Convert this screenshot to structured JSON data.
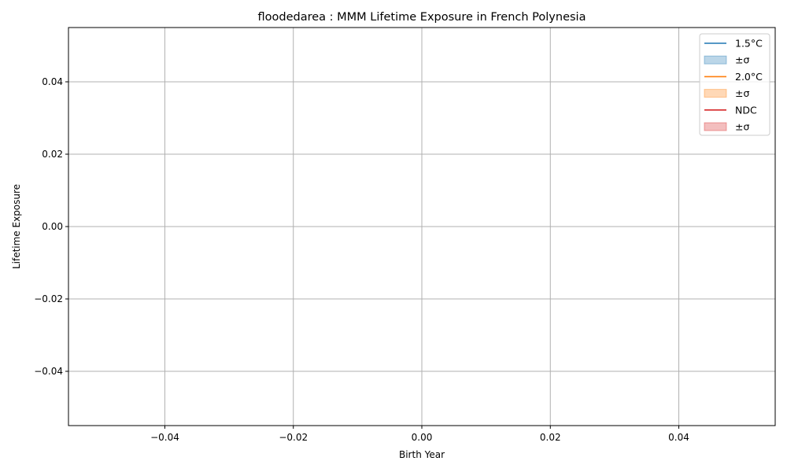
{
  "chart_data": {
    "type": "line",
    "title": "floodedarea : MMM Lifetime Exposure in French Polynesia",
    "xlabel": "Birth Year",
    "ylabel": "Lifetime Exposure",
    "xlim": [
      -0.055,
      0.055
    ],
    "ylim": [
      -0.055,
      0.055
    ],
    "xticks": [
      -0.04,
      -0.02,
      0.0,
      0.02,
      0.04
    ],
    "xtick_labels": [
      "−0.04",
      "−0.02",
      "0.00",
      "0.02",
      "0.04"
    ],
    "yticks": [
      0.04,
      0.02,
      0.0,
      -0.02,
      -0.04
    ],
    "ytick_labels": [
      "0.04",
      "0.02",
      "0.00",
      "−0.02",
      "−0.04"
    ],
    "grid": true,
    "legend_position": "top-right",
    "legend": [
      {
        "label": "1.5°C",
        "kind": "line",
        "color": "#1f77b4"
      },
      {
        "label": "±σ",
        "kind": "band",
        "color": "#1f77b4"
      },
      {
        "label": "2.0°C",
        "kind": "line",
        "color": "#ff7f0e"
      },
      {
        "label": "±σ",
        "kind": "band",
        "color": "#ff7f0e"
      },
      {
        "label": "NDC",
        "kind": "line",
        "color": "#d62728"
      },
      {
        "label": "±σ",
        "kind": "band",
        "color": "#d62728"
      }
    ],
    "series": [
      {
        "name": "1.5°C",
        "color": "#1f77b4",
        "x": [],
        "y": []
      },
      {
        "name": "2.0°C",
        "color": "#ff7f0e",
        "x": [],
        "y": []
      },
      {
        "name": "NDC",
        "color": "#d62728",
        "x": [],
        "y": []
      }
    ]
  }
}
